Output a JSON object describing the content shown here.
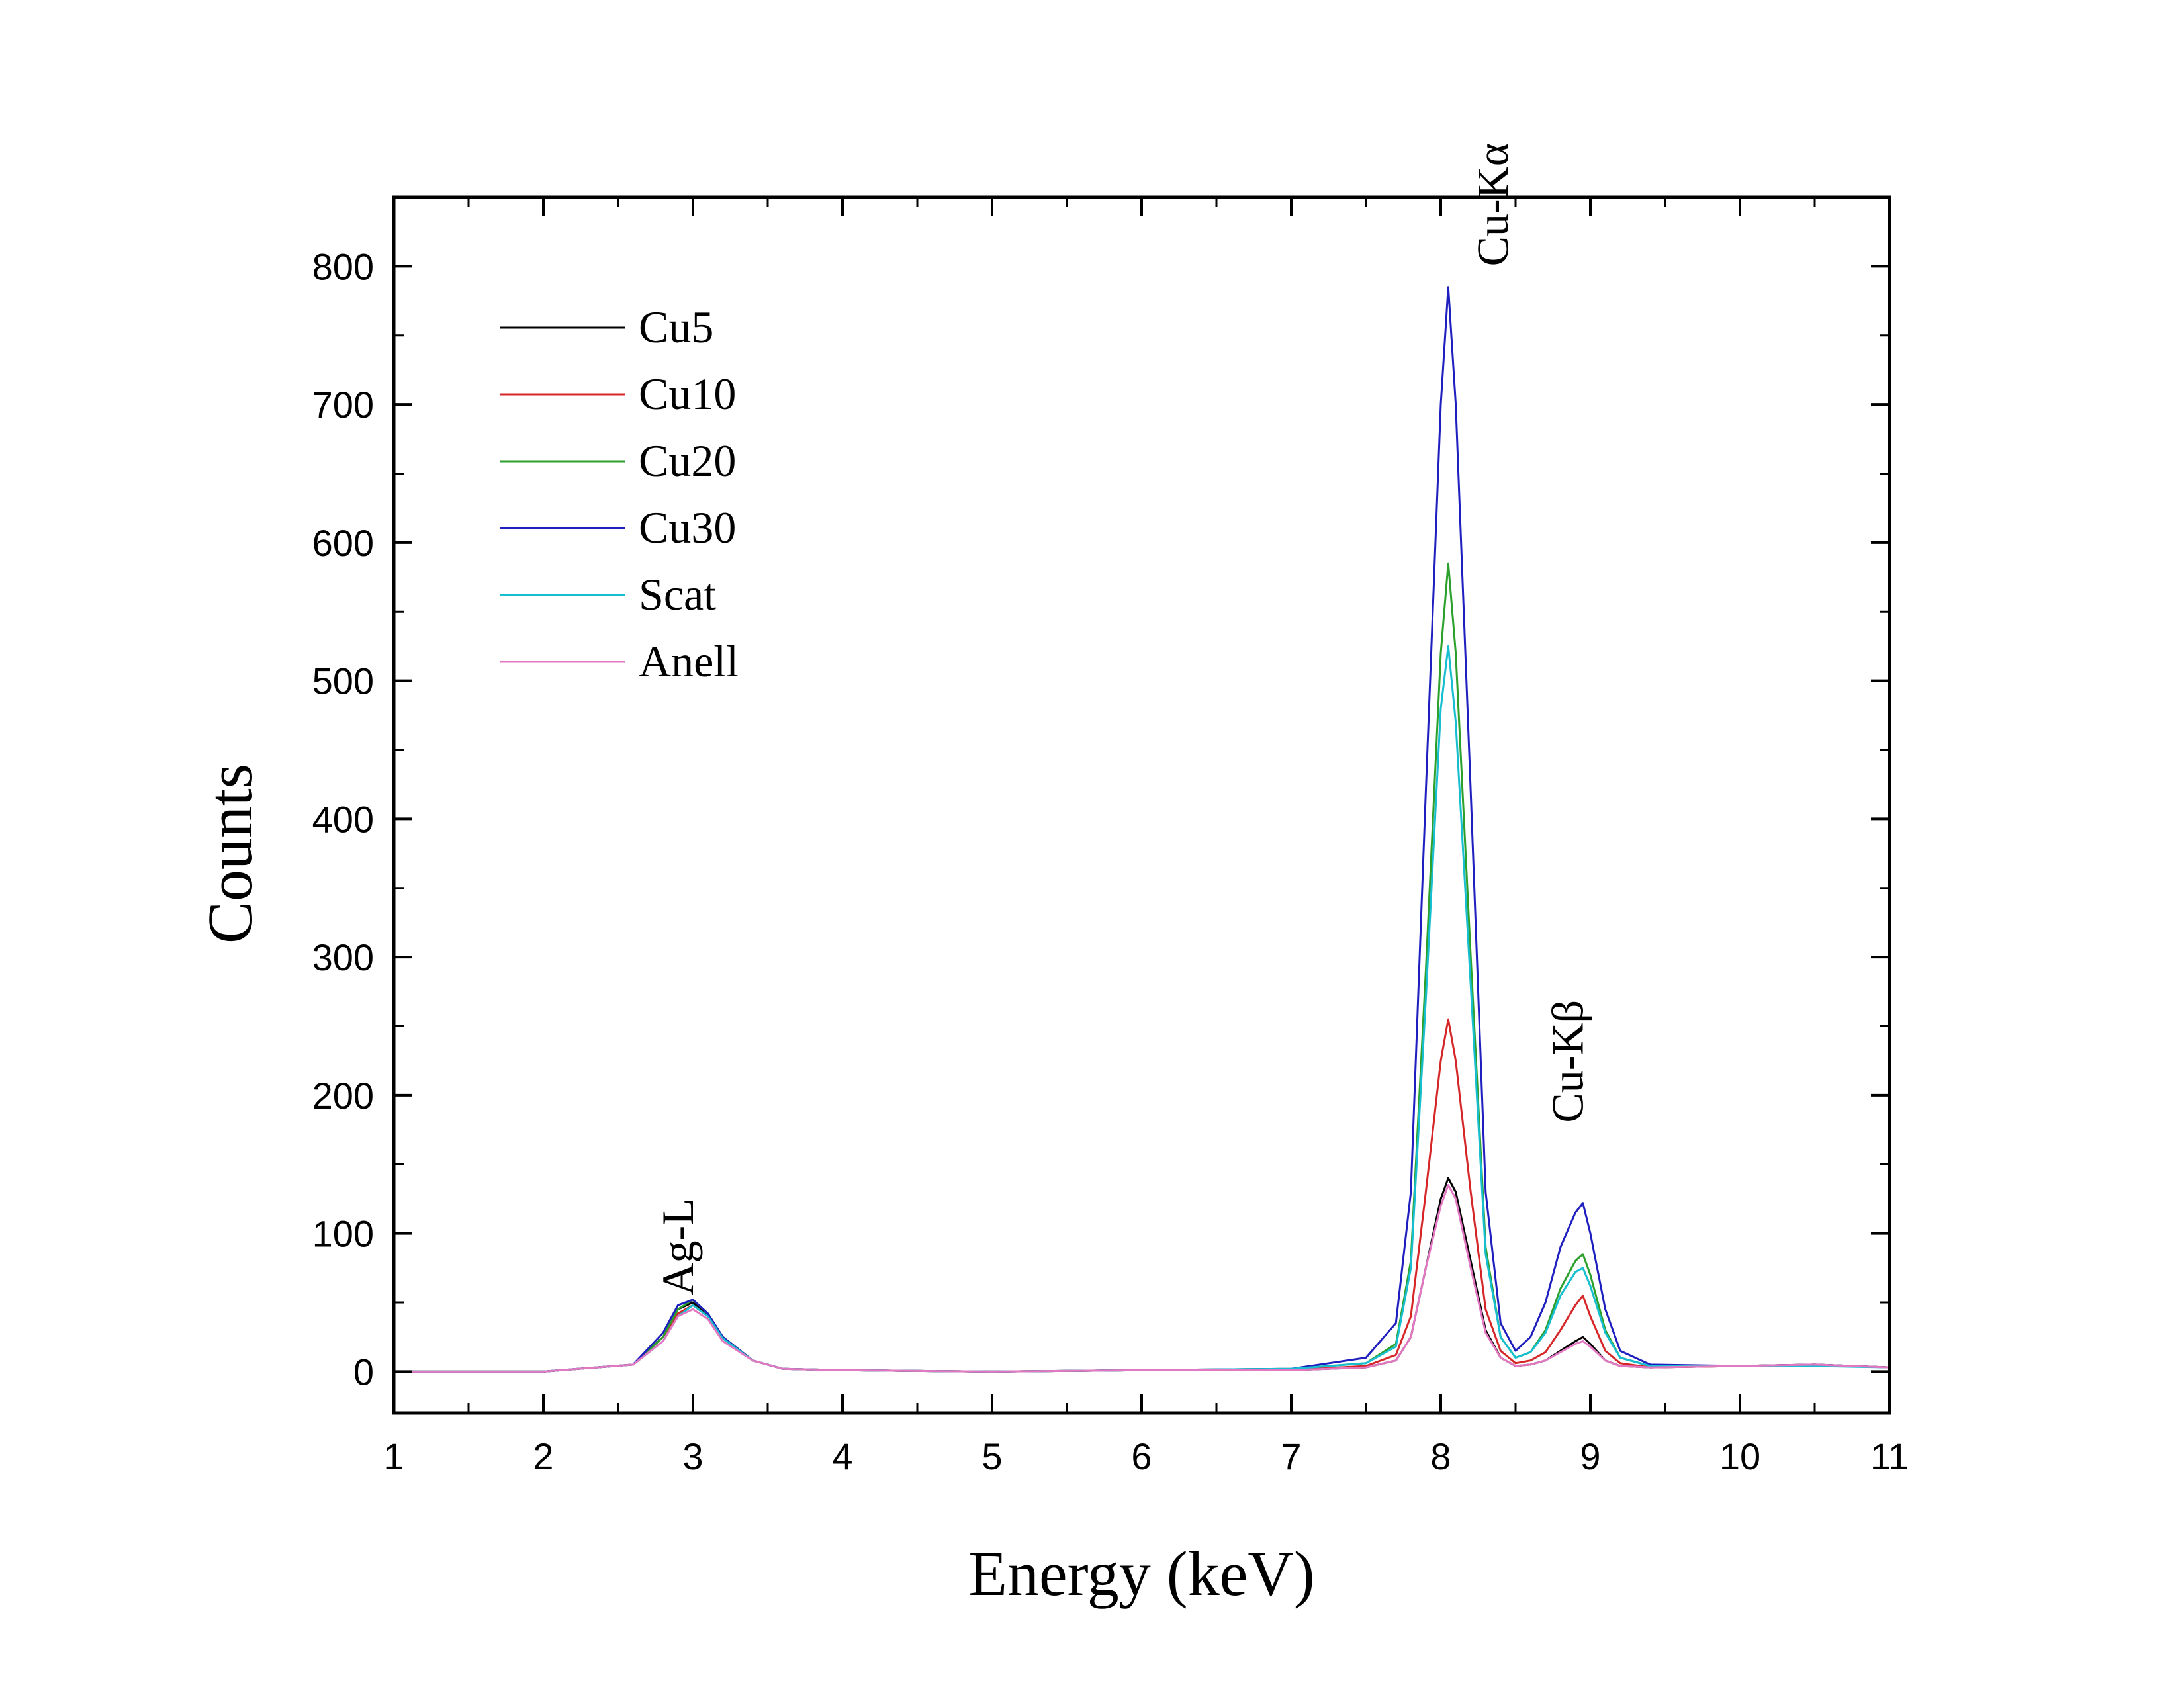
{
  "chart_data": {
    "type": "line",
    "xlabel": "Energy (keV)",
    "ylabel": "Counts",
    "xlim": [
      1,
      11
    ],
    "ylim": [
      -30,
      850
    ],
    "xticks": [
      1,
      2,
      3,
      4,
      5,
      6,
      7,
      8,
      9,
      10,
      11
    ],
    "yticks": [
      0,
      100,
      200,
      300,
      400,
      500,
      600,
      700,
      800
    ],
    "grid": false,
    "legend_position": "top-left",
    "annotations": [
      {
        "text": "Ag-L",
        "x": 3.0,
        "y": 55,
        "rotation": -90
      },
      {
        "text": "Cu-Kα",
        "x": 8.45,
        "y": 800,
        "rotation": -90
      },
      {
        "text": "Cu-Kβ",
        "x": 8.95,
        "y": 180,
        "rotation": -90
      }
    ],
    "series": [
      {
        "name": "Cu5",
        "color": "#000000",
        "x": [
          1.0,
          2.0,
          2.6,
          2.8,
          2.9,
          3.0,
          3.1,
          3.2,
          3.4,
          3.6,
          4.0,
          5.0,
          6.0,
          7.0,
          7.5,
          7.7,
          7.8,
          7.9,
          8.0,
          8.05,
          8.1,
          8.2,
          8.3,
          8.4,
          8.5,
          8.6,
          8.7,
          8.8,
          8.9,
          8.95,
          9.0,
          9.1,
          9.2,
          9.4,
          10.0,
          10.5,
          11.0
        ],
        "y": [
          0,
          0,
          5,
          25,
          45,
          50,
          40,
          25,
          8,
          2,
          1,
          0,
          1,
          1,
          3,
          8,
          25,
          75,
          125,
          140,
          130,
          80,
          30,
          10,
          4,
          5,
          8,
          15,
          22,
          25,
          20,
          8,
          4,
          3,
          4,
          5,
          3
        ]
      },
      {
        "name": "Cu10",
        "color": "#d62728",
        "x": [
          1.0,
          2.0,
          2.6,
          2.8,
          2.9,
          3.0,
          3.1,
          3.2,
          3.4,
          3.6,
          4.0,
          5.0,
          6.0,
          7.0,
          7.5,
          7.7,
          7.8,
          7.9,
          8.0,
          8.05,
          8.1,
          8.2,
          8.3,
          8.4,
          8.5,
          8.6,
          8.7,
          8.8,
          8.9,
          8.95,
          9.0,
          9.1,
          9.2,
          9.4,
          10.0,
          10.5,
          11.0
        ],
        "y": [
          0,
          0,
          5,
          25,
          42,
          48,
          40,
          25,
          8,
          2,
          1,
          0,
          1,
          1,
          4,
          12,
          40,
          130,
          225,
          255,
          225,
          130,
          45,
          15,
          6,
          8,
          14,
          30,
          48,
          55,
          40,
          15,
          6,
          3,
          4,
          5,
          3
        ]
      },
      {
        "name": "Cu20",
        "color": "#2ca02c",
        "x": [
          1.0,
          2.0,
          2.6,
          2.8,
          2.9,
          3.0,
          3.1,
          3.2,
          3.4,
          3.6,
          4.0,
          5.0,
          6.0,
          7.0,
          7.5,
          7.7,
          7.8,
          7.9,
          8.0,
          8.05,
          8.1,
          8.2,
          8.3,
          8.4,
          8.5,
          8.6,
          8.7,
          8.8,
          8.9,
          8.95,
          9.0,
          9.1,
          9.2,
          9.4,
          10.0,
          10.5,
          11.0
        ],
        "y": [
          0,
          0,
          5,
          25,
          45,
          52,
          42,
          25,
          8,
          2,
          1,
          0,
          1,
          2,
          6,
          20,
          80,
          290,
          520,
          585,
          520,
          300,
          90,
          25,
          10,
          14,
          30,
          60,
          80,
          85,
          70,
          30,
          10,
          4,
          4,
          5,
          3
        ]
      },
      {
        "name": "Cu30",
        "color": "#1f1fbf",
        "x": [
          1.0,
          2.0,
          2.6,
          2.8,
          2.9,
          3.0,
          3.1,
          3.2,
          3.4,
          3.6,
          4.0,
          5.0,
          6.0,
          7.0,
          7.5,
          7.7,
          7.8,
          7.9,
          8.0,
          8.05,
          8.1,
          8.2,
          8.3,
          8.4,
          8.5,
          8.6,
          8.7,
          8.8,
          8.9,
          8.95,
          9.0,
          9.1,
          9.2,
          9.4,
          10.0,
          10.5,
          11.0
        ],
        "y": [
          0,
          0,
          5,
          28,
          48,
          52,
          42,
          25,
          8,
          2,
          1,
          0,
          1,
          2,
          10,
          35,
          130,
          420,
          700,
          785,
          700,
          420,
          130,
          35,
          15,
          25,
          50,
          90,
          115,
          122,
          100,
          45,
          15,
          5,
          4,
          5,
          3
        ]
      },
      {
        "name": "Scat",
        "color": "#17becf",
        "x": [
          1.0,
          2.0,
          2.6,
          2.8,
          2.9,
          3.0,
          3.1,
          3.2,
          3.4,
          3.6,
          4.0,
          5.0,
          6.0,
          7.0,
          7.5,
          7.7,
          7.8,
          7.9,
          8.0,
          8.05,
          8.1,
          8.2,
          8.3,
          8.4,
          8.5,
          8.6,
          8.7,
          8.8,
          8.9,
          8.95,
          9.0,
          9.1,
          9.2,
          9.4,
          10.0,
          10.5,
          11.0
        ],
        "y": [
          0,
          0,
          5,
          22,
          40,
          48,
          40,
          24,
          8,
          2,
          1,
          0,
          1,
          2,
          6,
          18,
          75,
          270,
          480,
          525,
          470,
          280,
          85,
          25,
          10,
          14,
          28,
          55,
          72,
          75,
          62,
          28,
          10,
          4,
          4,
          4,
          3
        ]
      },
      {
        "name": "Anell",
        "color": "#e377c2",
        "x": [
          1.0,
          2.0,
          2.6,
          2.8,
          2.9,
          3.0,
          3.1,
          3.2,
          3.4,
          3.6,
          4.0,
          5.0,
          6.0,
          7.0,
          7.5,
          7.7,
          7.8,
          7.9,
          8.0,
          8.05,
          8.1,
          8.2,
          8.3,
          8.4,
          8.5,
          8.6,
          8.7,
          8.8,
          8.9,
          8.95,
          9.0,
          9.1,
          9.2,
          9.4,
          10.0,
          10.5,
          11.0
        ],
        "y": [
          0,
          0,
          5,
          22,
          40,
          45,
          38,
          22,
          8,
          2,
          1,
          0,
          1,
          1,
          3,
          8,
          25,
          75,
          120,
          135,
          125,
          75,
          28,
          10,
          4,
          5,
          8,
          14,
          20,
          22,
          18,
          8,
          4,
          3,
          4,
          5,
          3
        ]
      }
    ]
  }
}
